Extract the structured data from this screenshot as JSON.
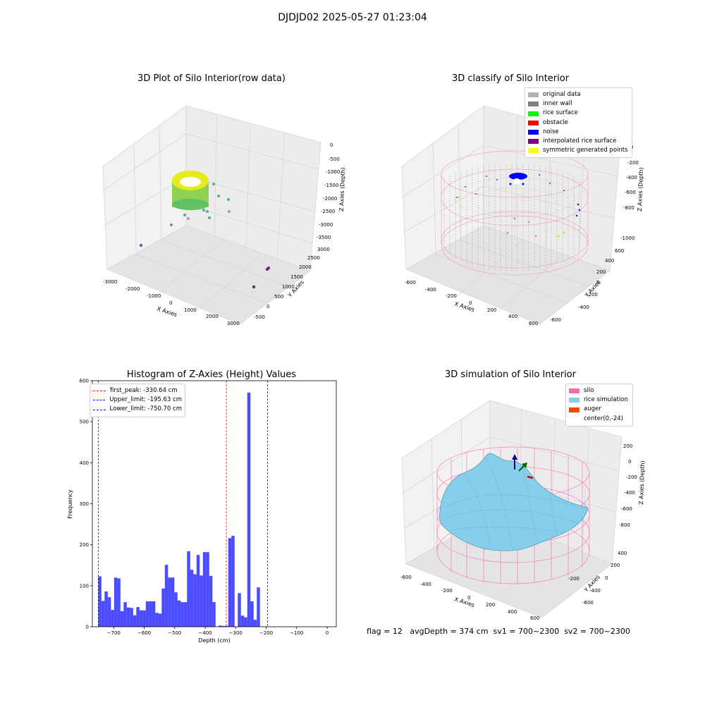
{
  "figure": {
    "suptitle": "DJDJD02 2025-05-27 01:23:04",
    "footer": "flag = 12   avgDepth = 374 cm  sv1 = 700~2300  sv2 = 700~2300"
  },
  "panels": {
    "raw": {
      "title": "3D Plot of Silo Interior(row data)",
      "xlabel": "X Axies",
      "ylabel": "Y Axies",
      "zlabel": "Z Axies (Depth)",
      "xticks": [
        "-3000",
        "-2000",
        "-1000",
        "0",
        "1000",
        "2000",
        "3000"
      ],
      "yticks": [
        "-500",
        "0",
        "500",
        "1000",
        "1500",
        "2000",
        "2500",
        "3000"
      ],
      "zticks": [
        "0",
        "-500",
        "-1000",
        "-1500",
        "-2000",
        "-2500",
        "-3000",
        "-3500"
      ]
    },
    "classify": {
      "title": "3D classify of Silo Interior",
      "xlabel": "X Axies",
      "ylabel": "Y Axies",
      "zlabel": "Z Axies (Depth)",
      "xticks": [
        "-600",
        "-400",
        "-200",
        "0",
        "200",
        "400",
        "600"
      ],
      "yticks": [
        "-600",
        "-400",
        "-200",
        "0",
        "200",
        "400",
        "600"
      ],
      "zticks": [
        "0",
        "-200",
        "-400",
        "-600",
        "-800",
        "-1000"
      ],
      "legend": [
        {
          "label": "original data",
          "color": "#b3b3b3"
        },
        {
          "label": "inner wall",
          "color": "#808080"
        },
        {
          "label": "rice surface",
          "color": "#00ff00"
        },
        {
          "label": "obstacle",
          "color": "#ff0000"
        },
        {
          "label": "noise",
          "color": "#0000ff"
        },
        {
          "label": "interpolated rice surface",
          "color": "#800080"
        },
        {
          "label": "symmetric generated points",
          "color": "#ffff00"
        }
      ]
    },
    "simulation": {
      "title": "3D simulation of Silo Interior",
      "xlabel": "X Axies",
      "ylabel": "Y Axies",
      "zlabel": "Z Axies (Depth)",
      "xticks": [
        "-600",
        "-400",
        "-200",
        "0",
        "200",
        "400",
        "600"
      ],
      "yticks": [
        "-600",
        "-400",
        "-200",
        "0",
        "200",
        "400"
      ],
      "zticks": [
        "200",
        "0",
        "-200",
        "-400",
        "-600",
        "-800"
      ],
      "legend": [
        {
          "label": "silo",
          "color": "#ff69b4"
        },
        {
          "label": "rice simulation",
          "color": "#87ceeb"
        },
        {
          "label": "auger",
          "color": "#ff4500"
        },
        {
          "label": "center(0,-24)",
          "color": "#ffffff"
        }
      ]
    }
  },
  "chart_data": {
    "type": "bar",
    "title": "Histogram of Z-Axies (Height) Values",
    "xlabel": "Depth (cm)",
    "ylabel": "Frequency",
    "xlim": [
      -770,
      30
    ],
    "ylim": [
      0,
      600
    ],
    "xticks": [
      -700,
      -600,
      -500,
      -400,
      -300,
      -200,
      -100,
      0
    ],
    "yticks": [
      0,
      100,
      200,
      300,
      400,
      500,
      600
    ],
    "bar_color": "#0000ff",
    "bins_start": -750.7,
    "bin_width": 10.4,
    "values": [
      123,
      63,
      86,
      72,
      41,
      120,
      118,
      38,
      60,
      47,
      46,
      28,
      48,
      40,
      40,
      62,
      62,
      62,
      34,
      32,
      93,
      151,
      120,
      120,
      84,
      64,
      60,
      60,
      184,
      139,
      128,
      175,
      125,
      182,
      182,
      124,
      60,
      0,
      3,
      2,
      2,
      216,
      222,
      0,
      82,
      27,
      23,
      571,
      62,
      17,
      96
    ],
    "vlines": [
      {
        "label": "first_peak: -330.64 cm",
        "x": -330.64,
        "color": "#ff0000"
      },
      {
        "label": "Upper_limit: -195.63 cm",
        "x": -195.63,
        "color": "#0000ff"
      },
      {
        "label": "Lower_limit: -750.70 cm",
        "x": -750.7,
        "color": "#0000ff"
      }
    ]
  }
}
